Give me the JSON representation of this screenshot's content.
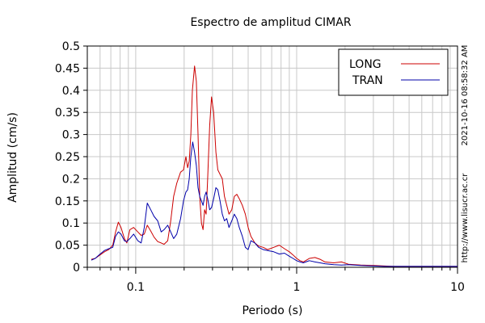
{
  "chart_data": {
    "type": "line",
    "title": "Espectro de amplitud CIMAR",
    "xlabel": "Periodo (s)",
    "ylabel": "Amplitud (cm/s)",
    "x_scale": "log",
    "xlim": [
      0.05,
      10
    ],
    "ylim": [
      0,
      0.5
    ],
    "x_tick_labels": [
      "0.1",
      "1",
      "10"
    ],
    "y_tick_labels": [
      "0",
      "0.05",
      "0.1",
      "0.15",
      "0.2",
      "0.25",
      "0.3",
      "0.35",
      "0.4",
      "0.45",
      "0.5"
    ],
    "grid": true,
    "legend_position": "top-right",
    "side_labels": [
      "2021-10-16 08:58:32 AM",
      "http://www.lisucr.ac.cr"
    ],
    "series": [
      {
        "name": "LONG",
        "color": "#cc0000",
        "points": [
          [
            0.053,
            0.018
          ],
          [
            0.056,
            0.02
          ],
          [
            0.06,
            0.028
          ],
          [
            0.064,
            0.035
          ],
          [
            0.068,
            0.04
          ],
          [
            0.072,
            0.05
          ],
          [
            0.075,
            0.08
          ],
          [
            0.078,
            0.102
          ],
          [
            0.081,
            0.09
          ],
          [
            0.085,
            0.065
          ],
          [
            0.088,
            0.055
          ],
          [
            0.092,
            0.085
          ],
          [
            0.097,
            0.09
          ],
          [
            0.103,
            0.08
          ],
          [
            0.108,
            0.072
          ],
          [
            0.113,
            0.075
          ],
          [
            0.118,
            0.095
          ],
          [
            0.124,
            0.082
          ],
          [
            0.13,
            0.068
          ],
          [
            0.137,
            0.058
          ],
          [
            0.144,
            0.055
          ],
          [
            0.15,
            0.052
          ],
          [
            0.158,
            0.06
          ],
          [
            0.165,
            0.105
          ],
          [
            0.172,
            0.16
          ],
          [
            0.18,
            0.19
          ],
          [
            0.19,
            0.215
          ],
          [
            0.198,
            0.22
          ],
          [
            0.205,
            0.25
          ],
          [
            0.21,
            0.225
          ],
          [
            0.215,
            0.24
          ],
          [
            0.22,
            0.3
          ],
          [
            0.225,
            0.4
          ],
          [
            0.232,
            0.455
          ],
          [
            0.238,
            0.42
          ],
          [
            0.244,
            0.3
          ],
          [
            0.25,
            0.16
          ],
          [
            0.256,
            0.1
          ],
          [
            0.262,
            0.085
          ],
          [
            0.268,
            0.13
          ],
          [
            0.274,
            0.12
          ],
          [
            0.28,
            0.2
          ],
          [
            0.288,
            0.32
          ],
          [
            0.296,
            0.385
          ],
          [
            0.305,
            0.35
          ],
          [
            0.315,
            0.26
          ],
          [
            0.324,
            0.22
          ],
          [
            0.334,
            0.21
          ],
          [
            0.345,
            0.2
          ],
          [
            0.356,
            0.16
          ],
          [
            0.368,
            0.14
          ],
          [
            0.38,
            0.12
          ],
          [
            0.395,
            0.13
          ],
          [
            0.41,
            0.16
          ],
          [
            0.425,
            0.165
          ],
          [
            0.44,
            0.155
          ],
          [
            0.46,
            0.14
          ],
          [
            0.48,
            0.12
          ],
          [
            0.5,
            0.09
          ],
          [
            0.52,
            0.07
          ],
          [
            0.55,
            0.055
          ],
          [
            0.58,
            0.048
          ],
          [
            0.62,
            0.045
          ],
          [
            0.66,
            0.04
          ],
          [
            0.72,
            0.045
          ],
          [
            0.78,
            0.05
          ],
          [
            0.84,
            0.042
          ],
          [
            0.9,
            0.035
          ],
          [
            0.95,
            0.028
          ],
          [
            1.0,
            0.02
          ],
          [
            1.05,
            0.015
          ],
          [
            1.1,
            0.012
          ],
          [
            1.2,
            0.02
          ],
          [
            1.3,
            0.022
          ],
          [
            1.4,
            0.018
          ],
          [
            1.5,
            0.012
          ],
          [
            1.7,
            0.01
          ],
          [
            1.9,
            0.012
          ],
          [
            2.1,
            0.007
          ],
          [
            2.5,
            0.005
          ],
          [
            3.0,
            0.004
          ],
          [
            3.5,
            0.003
          ],
          [
            4.0,
            0.002
          ],
          [
            5.0,
            0.002
          ],
          [
            6.0,
            0.002
          ],
          [
            7.0,
            0.002
          ],
          [
            8.0,
            0.002
          ],
          [
            9.0,
            0.002
          ],
          [
            10.0,
            0.002
          ]
        ]
      },
      {
        "name": "TRAN",
        "color": "#0000aa",
        "points": [
          [
            0.053,
            0.016
          ],
          [
            0.056,
            0.02
          ],
          [
            0.06,
            0.03
          ],
          [
            0.064,
            0.038
          ],
          [
            0.068,
            0.042
          ],
          [
            0.072,
            0.045
          ],
          [
            0.075,
            0.07
          ],
          [
            0.078,
            0.08
          ],
          [
            0.081,
            0.075
          ],
          [
            0.085,
            0.06
          ],
          [
            0.088,
            0.058
          ],
          [
            0.092,
            0.065
          ],
          [
            0.097,
            0.075
          ],
          [
            0.103,
            0.06
          ],
          [
            0.108,
            0.055
          ],
          [
            0.113,
            0.09
          ],
          [
            0.118,
            0.145
          ],
          [
            0.124,
            0.13
          ],
          [
            0.13,
            0.115
          ],
          [
            0.137,
            0.105
          ],
          [
            0.144,
            0.08
          ],
          [
            0.15,
            0.085
          ],
          [
            0.158,
            0.095
          ],
          [
            0.165,
            0.08
          ],
          [
            0.172,
            0.065
          ],
          [
            0.18,
            0.075
          ],
          [
            0.19,
            0.11
          ],
          [
            0.198,
            0.15
          ],
          [
            0.205,
            0.17
          ],
          [
            0.21,
            0.175
          ],
          [
            0.215,
            0.2
          ],
          [
            0.22,
            0.25
          ],
          [
            0.226,
            0.283
          ],
          [
            0.232,
            0.26
          ],
          [
            0.238,
            0.23
          ],
          [
            0.244,
            0.18
          ],
          [
            0.25,
            0.16
          ],
          [
            0.256,
            0.15
          ],
          [
            0.262,
            0.14
          ],
          [
            0.268,
            0.16
          ],
          [
            0.274,
            0.17
          ],
          [
            0.28,
            0.155
          ],
          [
            0.288,
            0.13
          ],
          [
            0.296,
            0.135
          ],
          [
            0.305,
            0.155
          ],
          [
            0.315,
            0.18
          ],
          [
            0.324,
            0.175
          ],
          [
            0.334,
            0.15
          ],
          [
            0.345,
            0.12
          ],
          [
            0.356,
            0.105
          ],
          [
            0.368,
            0.11
          ],
          [
            0.38,
            0.09
          ],
          [
            0.395,
            0.105
          ],
          [
            0.41,
            0.12
          ],
          [
            0.425,
            0.11
          ],
          [
            0.44,
            0.09
          ],
          [
            0.46,
            0.07
          ],
          [
            0.48,
            0.045
          ],
          [
            0.5,
            0.04
          ],
          [
            0.52,
            0.06
          ],
          [
            0.55,
            0.055
          ],
          [
            0.58,
            0.045
          ],
          [
            0.62,
            0.04
          ],
          [
            0.66,
            0.038
          ],
          [
            0.72,
            0.035
          ],
          [
            0.78,
            0.03
          ],
          [
            0.84,
            0.032
          ],
          [
            0.9,
            0.025
          ],
          [
            0.95,
            0.02
          ],
          [
            1.0,
            0.015
          ],
          [
            1.05,
            0.012
          ],
          [
            1.1,
            0.01
          ],
          [
            1.2,
            0.015
          ],
          [
            1.3,
            0.012
          ],
          [
            1.4,
            0.01
          ],
          [
            1.5,
            0.008
          ],
          [
            1.7,
            0.006
          ],
          [
            1.9,
            0.005
          ],
          [
            2.1,
            0.006
          ],
          [
            2.5,
            0.004
          ],
          [
            3.0,
            0.003
          ],
          [
            3.5,
            0.002
          ],
          [
            4.0,
            0.002
          ],
          [
            5.0,
            0.002
          ],
          [
            6.0,
            0.002
          ],
          [
            7.0,
            0.002
          ],
          [
            8.0,
            0.002
          ],
          [
            9.0,
            0.002
          ],
          [
            10.0,
            0.002
          ]
        ]
      }
    ]
  }
}
